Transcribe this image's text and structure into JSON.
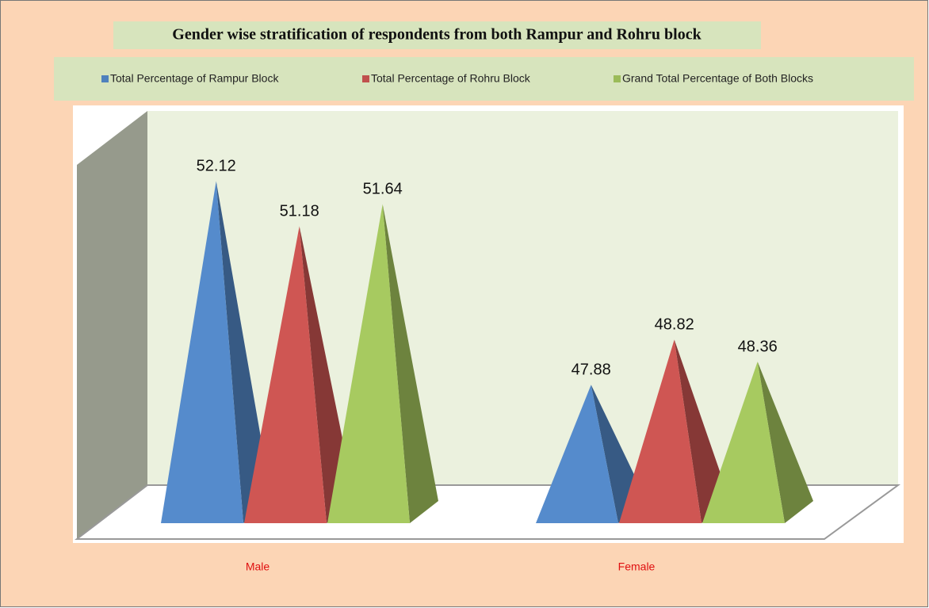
{
  "chart_data": {
    "type": "pyramid3d",
    "title": "Gender wise stratification of respondents from both Rampur and Rohru block",
    "categories": [
      "Male",
      "Female"
    ],
    "series": [
      {
        "name": "Total Percentage of Rampur Block",
        "color": "#4f81bd",
        "values": [
          52.12,
          47.88
        ]
      },
      {
        "name": "Total Percentage of Rohru Block",
        "color": "#c0504d",
        "values": [
          51.18,
          48.82
        ]
      },
      {
        "name": "Grand Total Percentage of Both Blocks",
        "color": "#9bbb59",
        "values": [
          51.64,
          48.36
        ]
      }
    ],
    "ylim": [
      45,
      53
    ],
    "legend": "top"
  }
}
